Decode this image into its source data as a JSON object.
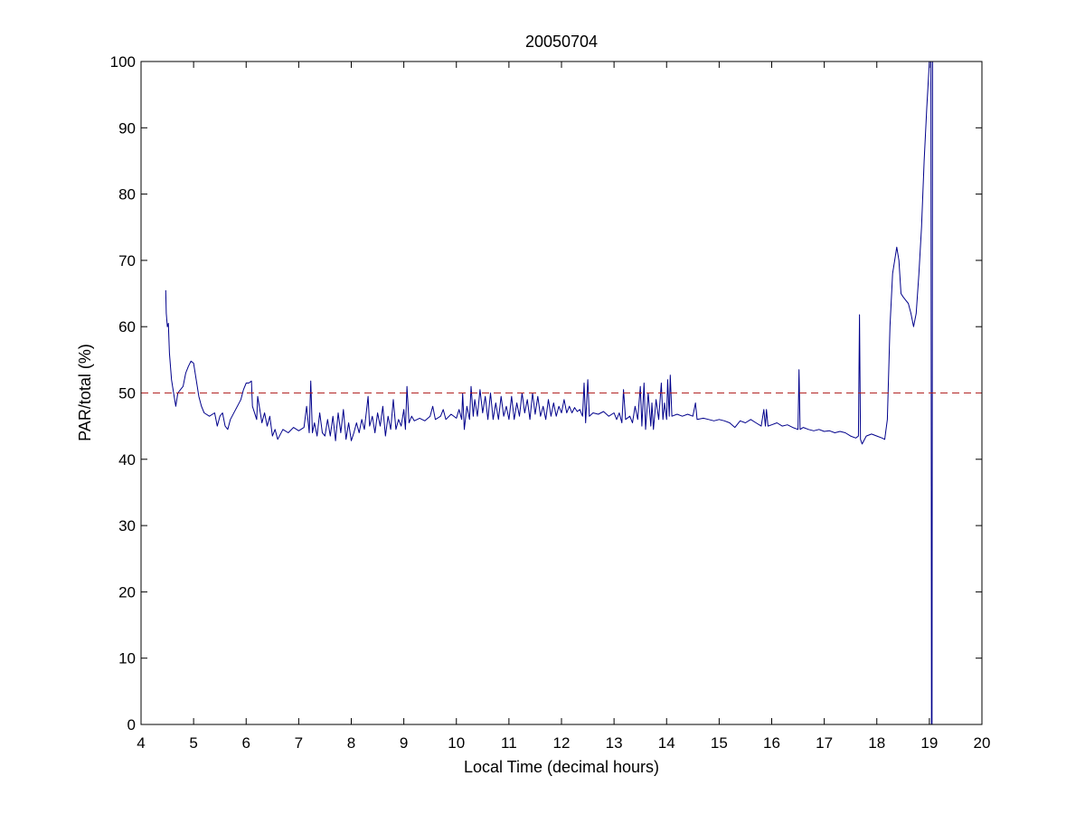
{
  "chart_data": {
    "type": "line",
    "title": "20050704",
    "xlabel": "Local Time (decimal hours)",
    "ylabel": "PAR/total (%)",
    "xlim": [
      4,
      20
    ],
    "ylim": [
      0,
      100
    ],
    "xticks": [
      4,
      5,
      6,
      7,
      8,
      9,
      10,
      11,
      12,
      13,
      14,
      15,
      16,
      17,
      18,
      19,
      20
    ],
    "yticks": [
      0,
      10,
      20,
      30,
      40,
      50,
      60,
      70,
      80,
      90,
      100
    ],
    "grid": false,
    "series": [
      {
        "color": "#00008b",
        "style": "solid",
        "points": [
          [
            4.47,
            65.5
          ],
          [
            4.48,
            62.0
          ],
          [
            4.5,
            60.0
          ],
          [
            4.52,
            60.5
          ],
          [
            4.54,
            56.0
          ],
          [
            4.58,
            52.0
          ],
          [
            4.62,
            50.0
          ],
          [
            4.66,
            48.0
          ],
          [
            4.7,
            50.0
          ],
          [
            4.75,
            50.5
          ],
          [
            4.8,
            51.0
          ],
          [
            4.85,
            53.0
          ],
          [
            4.9,
            54.0
          ],
          [
            4.95,
            54.8
          ],
          [
            5.0,
            54.5
          ],
          [
            5.05,
            52.0
          ],
          [
            5.1,
            49.5
          ],
          [
            5.15,
            48.0
          ],
          [
            5.2,
            47.0
          ],
          [
            5.3,
            46.5
          ],
          [
            5.4,
            47.0
          ],
          [
            5.45,
            45.0
          ],
          [
            5.5,
            46.5
          ],
          [
            5.55,
            47.0
          ],
          [
            5.6,
            45.0
          ],
          [
            5.65,
            44.5
          ],
          [
            5.7,
            46.0
          ],
          [
            5.8,
            47.5
          ],
          [
            5.9,
            49.0
          ],
          [
            5.95,
            50.5
          ],
          [
            6.0,
            51.5
          ],
          [
            6.05,
            51.5
          ],
          [
            6.1,
            51.8
          ],
          [
            6.12,
            48.0
          ],
          [
            6.2,
            46.0
          ],
          [
            6.22,
            49.5
          ],
          [
            6.3,
            45.5
          ],
          [
            6.35,
            47.0
          ],
          [
            6.4,
            45.0
          ],
          [
            6.45,
            46.5
          ],
          [
            6.5,
            43.5
          ],
          [
            6.55,
            44.5
          ],
          [
            6.6,
            43.0
          ],
          [
            6.7,
            44.5
          ],
          [
            6.8,
            44.0
          ],
          [
            6.9,
            44.8
          ],
          [
            7.0,
            44.3
          ],
          [
            7.1,
            44.8
          ],
          [
            7.15,
            48.0
          ],
          [
            7.2,
            44.0
          ],
          [
            7.23,
            51.8
          ],
          [
            7.26,
            44.0
          ],
          [
            7.3,
            45.5
          ],
          [
            7.35,
            43.5
          ],
          [
            7.4,
            47.0
          ],
          [
            7.45,
            44.0
          ],
          [
            7.5,
            43.5
          ],
          [
            7.55,
            46.0
          ],
          [
            7.6,
            43.5
          ],
          [
            7.65,
            46.5
          ],
          [
            7.7,
            42.8
          ],
          [
            7.75,
            47.0
          ],
          [
            7.8,
            44.0
          ],
          [
            7.85,
            47.5
          ],
          [
            7.9,
            43.0
          ],
          [
            7.95,
            45.5
          ],
          [
            8.0,
            42.8
          ],
          [
            8.05,
            44.0
          ],
          [
            8.1,
            45.5
          ],
          [
            8.15,
            44.0
          ],
          [
            8.2,
            46.0
          ],
          [
            8.25,
            44.5
          ],
          [
            8.3,
            48.0
          ],
          [
            8.32,
            49.5
          ],
          [
            8.35,
            45.0
          ],
          [
            8.4,
            46.5
          ],
          [
            8.45,
            44.0
          ],
          [
            8.5,
            47.0
          ],
          [
            8.55,
            45.0
          ],
          [
            8.6,
            48.0
          ],
          [
            8.65,
            43.5
          ],
          [
            8.7,
            46.5
          ],
          [
            8.75,
            44.5
          ],
          [
            8.8,
            49.0
          ],
          [
            8.85,
            44.5
          ],
          [
            8.9,
            46.0
          ],
          [
            8.95,
            45.0
          ],
          [
            9.0,
            47.5
          ],
          [
            9.03,
            44.5
          ],
          [
            9.06,
            51.0
          ],
          [
            9.1,
            45.5
          ],
          [
            9.15,
            46.5
          ],
          [
            9.2,
            45.8
          ],
          [
            9.3,
            46.2
          ],
          [
            9.4,
            45.8
          ],
          [
            9.5,
            46.5
          ],
          [
            9.55,
            48.0
          ],
          [
            9.6,
            46.0
          ],
          [
            9.7,
            46.5
          ],
          [
            9.75,
            47.5
          ],
          [
            9.8,
            46.0
          ],
          [
            9.9,
            46.8
          ],
          [
            10.0,
            46.2
          ],
          [
            10.05,
            47.5
          ],
          [
            10.1,
            46.0
          ],
          [
            10.12,
            50.0
          ],
          [
            10.15,
            44.5
          ],
          [
            10.2,
            48.0
          ],
          [
            10.25,
            46.0
          ],
          [
            10.28,
            51.0
          ],
          [
            10.32,
            46.5
          ],
          [
            10.35,
            49.0
          ],
          [
            10.4,
            46.5
          ],
          [
            10.45,
            50.5
          ],
          [
            10.5,
            47.0
          ],
          [
            10.55,
            49.5
          ],
          [
            10.6,
            46.0
          ],
          [
            10.65,
            50.0
          ],
          [
            10.7,
            46.0
          ],
          [
            10.75,
            48.5
          ],
          [
            10.8,
            46.0
          ],
          [
            10.85,
            49.5
          ],
          [
            10.9,
            46.5
          ],
          [
            10.95,
            48.0
          ],
          [
            11.0,
            46.0
          ],
          [
            11.05,
            49.5
          ],
          [
            11.1,
            46.0
          ],
          [
            11.15,
            48.5
          ],
          [
            11.2,
            46.5
          ],
          [
            11.25,
            50.0
          ],
          [
            11.3,
            47.0
          ],
          [
            11.35,
            49.0
          ],
          [
            11.4,
            46.0
          ],
          [
            11.45,
            50.0
          ],
          [
            11.5,
            46.8
          ],
          [
            11.55,
            49.5
          ],
          [
            11.6,
            46.5
          ],
          [
            11.65,
            48.0
          ],
          [
            11.7,
            46.0
          ],
          [
            11.75,
            49.0
          ],
          [
            11.8,
            46.5
          ],
          [
            11.85,
            48.5
          ],
          [
            11.9,
            46.5
          ],
          [
            11.95,
            48.0
          ],
          [
            12.0,
            47.0
          ],
          [
            12.05,
            49.0
          ],
          [
            12.1,
            47.0
          ],
          [
            12.15,
            48.0
          ],
          [
            12.2,
            47.0
          ],
          [
            12.25,
            47.8
          ],
          [
            12.3,
            47.2
          ],
          [
            12.35,
            47.5
          ],
          [
            12.4,
            46.5
          ],
          [
            12.43,
            51.5
          ],
          [
            12.46,
            45.5
          ],
          [
            12.5,
            52.0
          ],
          [
            12.53,
            46.5
          ],
          [
            12.6,
            47.0
          ],
          [
            12.7,
            46.8
          ],
          [
            12.8,
            47.2
          ],
          [
            12.9,
            46.5
          ],
          [
            13.0,
            47.0
          ],
          [
            13.05,
            46.0
          ],
          [
            13.1,
            47.0
          ],
          [
            13.15,
            45.5
          ],
          [
            13.18,
            50.5
          ],
          [
            13.22,
            46.0
          ],
          [
            13.3,
            46.5
          ],
          [
            13.35,
            45.5
          ],
          [
            13.4,
            48.0
          ],
          [
            13.45,
            46.0
          ],
          [
            13.5,
            51.0
          ],
          [
            13.53,
            45.0
          ],
          [
            13.57,
            51.5
          ],
          [
            13.6,
            44.5
          ],
          [
            13.65,
            50.0
          ],
          [
            13.7,
            45.0
          ],
          [
            13.72,
            48.5
          ],
          [
            13.75,
            44.5
          ],
          [
            13.8,
            49.0
          ],
          [
            13.85,
            46.0
          ],
          [
            13.9,
            51.5
          ],
          [
            13.93,
            46.0
          ],
          [
            13.96,
            48.5
          ],
          [
            14.0,
            46.0
          ],
          [
            14.02,
            52.0
          ],
          [
            14.05,
            46.5
          ],
          [
            14.07,
            52.7
          ],
          [
            14.1,
            46.5
          ],
          [
            14.2,
            46.8
          ],
          [
            14.3,
            46.5
          ],
          [
            14.4,
            46.8
          ],
          [
            14.5,
            46.5
          ],
          [
            14.55,
            48.5
          ],
          [
            14.58,
            46.0
          ],
          [
            14.7,
            46.2
          ],
          [
            14.8,
            46.0
          ],
          [
            14.9,
            45.8
          ],
          [
            15.0,
            46.0
          ],
          [
            15.1,
            45.8
          ],
          [
            15.2,
            45.5
          ],
          [
            15.3,
            44.8
          ],
          [
            15.4,
            45.8
          ],
          [
            15.5,
            45.5
          ],
          [
            15.6,
            46.0
          ],
          [
            15.7,
            45.5
          ],
          [
            15.8,
            45.0
          ],
          [
            15.85,
            47.5
          ],
          [
            15.88,
            45.0
          ],
          [
            15.9,
            47.5
          ],
          [
            15.93,
            45.0
          ],
          [
            16.0,
            45.2
          ],
          [
            16.1,
            45.5
          ],
          [
            16.2,
            45.0
          ],
          [
            16.3,
            45.2
          ],
          [
            16.4,
            44.8
          ],
          [
            16.5,
            44.5
          ],
          [
            16.52,
            53.5
          ],
          [
            16.54,
            44.5
          ],
          [
            16.6,
            44.8
          ],
          [
            16.7,
            44.5
          ],
          [
            16.8,
            44.3
          ],
          [
            16.9,
            44.5
          ],
          [
            17.0,
            44.2
          ],
          [
            17.1,
            44.3
          ],
          [
            17.2,
            44.0
          ],
          [
            17.3,
            44.2
          ],
          [
            17.4,
            44.0
          ],
          [
            17.5,
            43.5
          ],
          [
            17.6,
            43.2
          ],
          [
            17.65,
            43.5
          ],
          [
            17.67,
            61.8
          ],
          [
            17.69,
            43.0
          ],
          [
            17.72,
            42.3
          ],
          [
            17.8,
            43.5
          ],
          [
            17.9,
            43.8
          ],
          [
            18.0,
            43.5
          ],
          [
            18.1,
            43.2
          ],
          [
            18.15,
            43.0
          ],
          [
            18.2,
            46.0
          ],
          [
            18.25,
            60.0
          ],
          [
            18.3,
            68.0
          ],
          [
            18.35,
            70.5
          ],
          [
            18.38,
            72.0
          ],
          [
            18.42,
            70.0
          ],
          [
            18.46,
            65.0
          ],
          [
            18.5,
            64.5
          ],
          [
            18.55,
            64.0
          ],
          [
            18.6,
            63.5
          ],
          [
            18.65,
            62.0
          ],
          [
            18.7,
            60.0
          ],
          [
            18.75,
            62.0
          ],
          [
            18.8,
            68.0
          ],
          [
            18.85,
            75.0
          ],
          [
            18.9,
            85.0
          ],
          [
            18.95,
            93.0
          ],
          [
            19.0,
            100.0
          ],
          [
            19.03,
            100.0
          ],
          [
            19.04,
            0.0
          ],
          [
            19.05,
            0.0
          ],
          [
            19.06,
            100.0
          ]
        ]
      },
      {
        "color": "#b22222",
        "style": "dashed",
        "points": [
          [
            4,
            50
          ],
          [
            20,
            50
          ]
        ]
      }
    ]
  }
}
